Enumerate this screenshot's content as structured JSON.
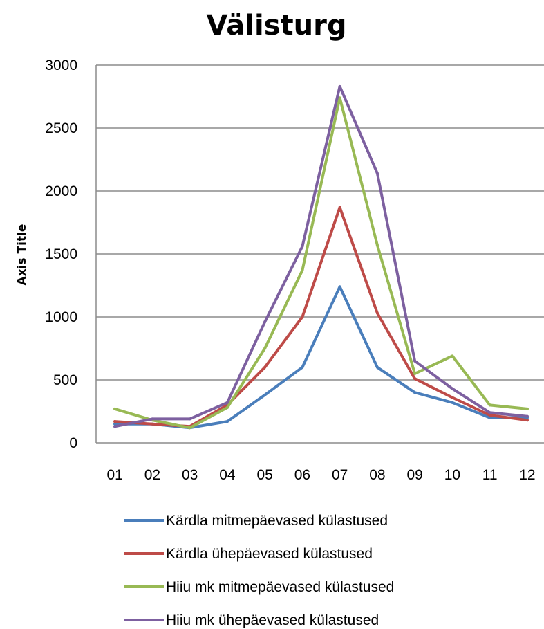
{
  "chart_data": {
    "type": "line",
    "title": "Välisturg",
    "ylabel": "Axis Title",
    "xlabel": "",
    "categories": [
      "01",
      "02",
      "03",
      "04",
      "05",
      "06",
      "07",
      "08",
      "09",
      "10",
      "11",
      "12"
    ],
    "ylim": [
      0,
      3000
    ],
    "yticks": [
      0,
      500,
      1000,
      1500,
      2000,
      2500,
      3000
    ],
    "grid": true,
    "legend_position": "bottom",
    "series": [
      {
        "name": "Kärdla mitmepäevased külastused",
        "color": "#4a7ebb",
        "values": [
          150,
          150,
          120,
          170,
          380,
          600,
          1240,
          600,
          400,
          320,
          200,
          200
        ]
      },
      {
        "name": "Kärdla ühepäevased külastused",
        "color": "#be4b48",
        "values": [
          170,
          150,
          130,
          300,
          600,
          1000,
          1870,
          1030,
          510,
          360,
          220,
          180
        ]
      },
      {
        "name": "Hiiu mk mitmepäevased külastused",
        "color": "#98b954",
        "values": [
          270,
          180,
          120,
          280,
          750,
          1370,
          2740,
          1570,
          550,
          690,
          300,
          270
        ]
      },
      {
        "name": "Hiiu mk ühepäevased külastused",
        "color": "#7d60a0",
        "values": [
          130,
          190,
          190,
          320,
          960,
          1560,
          2830,
          2140,
          650,
          430,
          240,
          210
        ]
      }
    ]
  }
}
